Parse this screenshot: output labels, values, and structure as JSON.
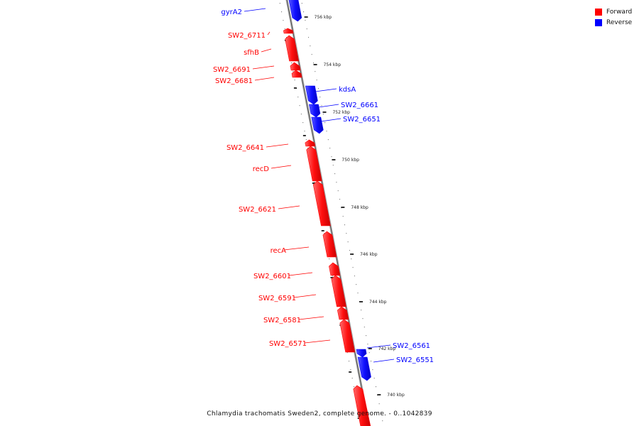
{
  "legend": {
    "forward": {
      "label": "Forward",
      "color": "#ff0000"
    },
    "reverse": {
      "label": "Reverse",
      "color": "#0000ff"
    }
  },
  "caption": "Chlamydia trachomatis Sweden2, complete genome. - 0..1042839",
  "ticks": [
    {
      "label": "756 kbp",
      "kbp": 756
    },
    {
      "label": "754 kbp",
      "kbp": 754
    },
    {
      "label": "752 kbp",
      "kbp": 752
    },
    {
      "label": "750 kbp",
      "kbp": 750
    },
    {
      "label": "748 kbp",
      "kbp": 748
    },
    {
      "label": "746 kbp",
      "kbp": 746
    },
    {
      "label": "744 kbp",
      "kbp": 744
    },
    {
      "label": "742 kbp",
      "kbp": 742
    },
    {
      "label": "740 kbp",
      "kbp": 740
    }
  ],
  "genes": [
    {
      "name": "gyrA2",
      "strand": "reverse"
    },
    {
      "name": "SW2_6711",
      "strand": "forward"
    },
    {
      "name": "sfhB",
      "strand": "forward"
    },
    {
      "name": "SW2_6691",
      "strand": "forward"
    },
    {
      "name": "SW2_6681",
      "strand": "forward"
    },
    {
      "name": "kdsA",
      "strand": "reverse"
    },
    {
      "name": "SW2_6661",
      "strand": "reverse"
    },
    {
      "name": "SW2_6651",
      "strand": "reverse"
    },
    {
      "name": "SW2_6641",
      "strand": "forward"
    },
    {
      "name": "recD",
      "strand": "forward"
    },
    {
      "name": "SW2_6621",
      "strand": "forward"
    },
    {
      "name": "recA",
      "strand": "forward"
    },
    {
      "name": "SW2_6601",
      "strand": "forward"
    },
    {
      "name": "SW2_6591",
      "strand": "forward"
    },
    {
      "name": "SW2_6581",
      "strand": "forward"
    },
    {
      "name": "SW2_6571",
      "strand": "forward"
    },
    {
      "name": "SW2_6561",
      "strand": "reverse"
    },
    {
      "name": "SW2_6551",
      "strand": "reverse"
    }
  ]
}
